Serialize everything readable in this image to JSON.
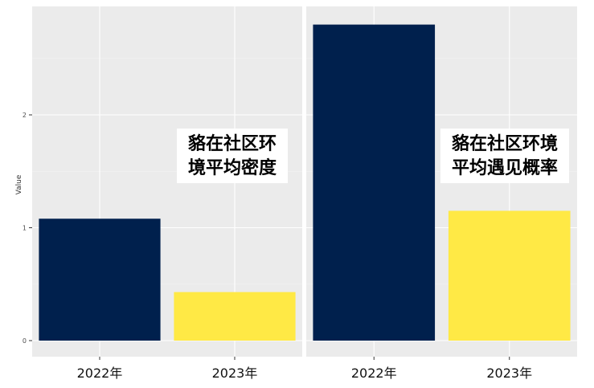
{
  "chart_data": [
    {
      "type": "bar",
      "panel": "left",
      "categories": [
        "2022年",
        "2023年"
      ],
      "values": [
        1.08,
        0.43
      ],
      "ylabel": "Value",
      "ylim": [
        0,
        2.9
      ],
      "yticks": [
        "0",
        "1",
        "2"
      ],
      "grid": true,
      "annotation": [
        "貉在社区环",
        "境平均密度"
      ],
      "colors": [
        "#00204d",
        "#ffe945"
      ]
    },
    {
      "type": "bar",
      "panel": "right",
      "categories": [
        "2022年",
        "2023年"
      ],
      "values": [
        2.8,
        1.15
      ],
      "ylim": [
        0,
        2.9
      ],
      "grid": true,
      "annotation": [
        "貉在社区环境",
        "平均遇见概率"
      ],
      "colors": [
        "#00204d",
        "#ffe945"
      ]
    }
  ]
}
